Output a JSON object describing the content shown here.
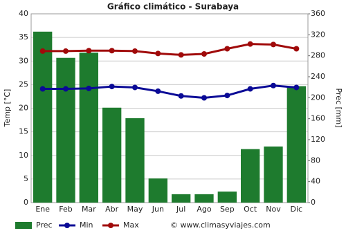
{
  "chart_data": {
    "type": "combo",
    "title": "Gráfico climático - Surabaya",
    "y_label": "Temp [°C]",
    "y2_label": "Prec [mm]",
    "source": "© www.climasyviajes.com",
    "categories": [
      "Ene",
      "Feb",
      "Mar",
      "Abr",
      "May",
      "Jun",
      "Jul",
      "Ago",
      "Sep",
      "Oct",
      "Nov",
      "Dic"
    ],
    "series": [
      {
        "name": "Prec",
        "type": "bar",
        "axis": "y2",
        "color": "#1e7b2e",
        "values": [
          326,
          276,
          286,
          181,
          161,
          46,
          16,
          16,
          21,
          102,
          107,
          222
        ]
      },
      {
        "name": "Min",
        "type": "line",
        "color": "#0a0a96",
        "values": [
          24.1,
          24.1,
          24.2,
          24.6,
          24.4,
          23.6,
          22.6,
          22.2,
          22.7,
          24.1,
          24.8,
          24.4
        ]
      },
      {
        "name": "Max",
        "type": "line",
        "color": "#a00a0a",
        "values": [
          32.1,
          32.1,
          32.2,
          32.2,
          32.1,
          31.6,
          31.3,
          31.5,
          32.6,
          33.6,
          33.5,
          32.6
        ]
      }
    ],
    "ylim": [
      0,
      40
    ],
    "yticks": [
      0,
      5,
      10,
      15,
      20,
      25,
      30,
      35,
      40
    ],
    "y2lim": [
      0,
      360
    ],
    "y2ticks": [
      0,
      40,
      80,
      120,
      160,
      200,
      240,
      280,
      320,
      360
    ],
    "grid": true
  }
}
